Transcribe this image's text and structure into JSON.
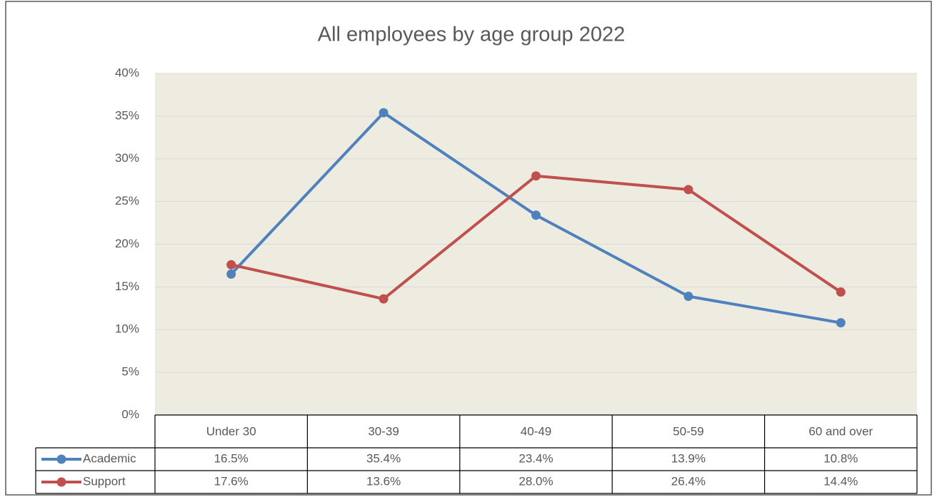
{
  "chart_data": {
    "type": "line",
    "title": "All employees by age group 2022",
    "categories": [
      "Under 30",
      "30-39",
      "40-49",
      "50-59",
      "60 and over"
    ],
    "series": [
      {
        "name": "Academic",
        "color": "#4f81bd",
        "values": [
          16.5,
          35.4,
          23.4,
          13.9,
          10.8
        ],
        "value_labels": [
          "16.5%",
          "35.4%",
          "23.4%",
          "13.9%",
          "10.8%"
        ]
      },
      {
        "name": "Support",
        "color": "#c0504d",
        "values": [
          17.6,
          13.6,
          28.0,
          26.4,
          14.4
        ],
        "value_labels": [
          "17.6%",
          "13.6%",
          "28.0%",
          "26.4%",
          "14.4%"
        ]
      }
    ],
    "ylim": [
      0,
      40
    ],
    "yticks": [
      {
        "value": 0,
        "label": "0%"
      },
      {
        "value": 5,
        "label": "5%"
      },
      {
        "value": 10,
        "label": "10%"
      },
      {
        "value": 15,
        "label": "15%"
      },
      {
        "value": 20,
        "label": "20%"
      },
      {
        "value": 25,
        "label": "25%"
      },
      {
        "value": 30,
        "label": "30%"
      },
      {
        "value": 35,
        "label": "35%"
      },
      {
        "value": 40,
        "label": "40%"
      }
    ],
    "grid": true,
    "background": "#eeebe0"
  }
}
